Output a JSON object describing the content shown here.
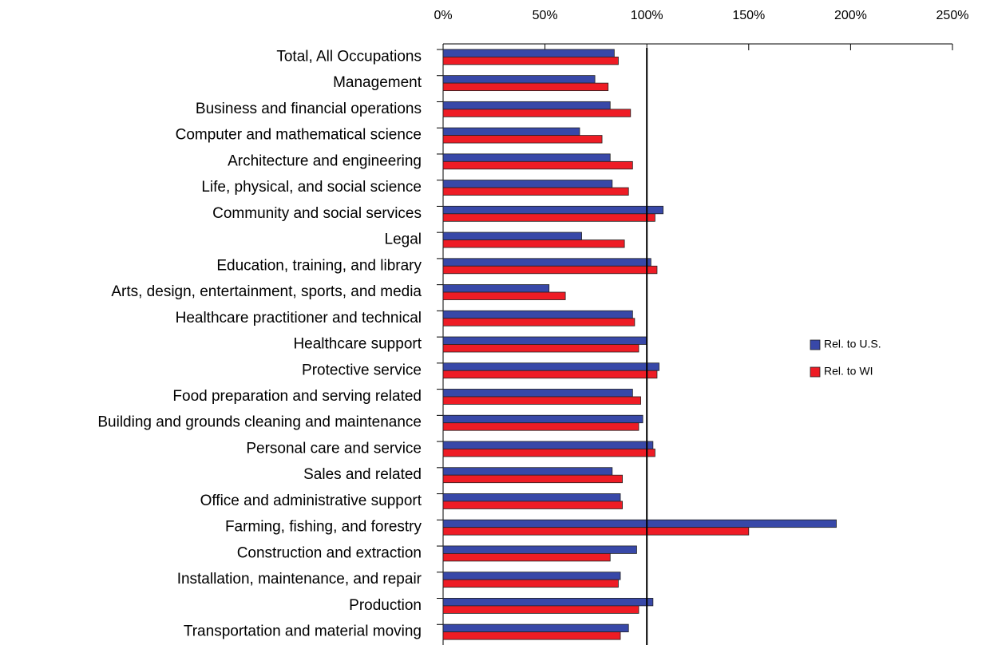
{
  "chart_data": {
    "type": "hbar",
    "categories": [
      "Total, All Occupations",
      "Management",
      "Business and financial operations",
      "Computer and mathematical science",
      "Architecture and engineering",
      "Life, physical, and social science",
      "Community and social services",
      "Legal",
      "Education, training, and library",
      "Arts, design, entertainment, sports, and media",
      "Healthcare practitioner and technical",
      "Healthcare support",
      "Protective service",
      "Food preparation and serving related",
      "Building and grounds cleaning and maintenance",
      "Personal care and service",
      "Sales and related",
      "Office and administrative support",
      "Farming, fishing, and forestry",
      "Construction and extraction",
      "Installation, maintenance, and repair",
      "Production",
      "Transportation and material moving"
    ],
    "series": [
      {
        "name": "Rel. to U.S.",
        "color": "#3848a8",
        "values": [
          84,
          74.5,
          82,
          67,
          82,
          83,
          108,
          68,
          102,
          52,
          93,
          100,
          106,
          93,
          98,
          103,
          83,
          87,
          193,
          95,
          87,
          103,
          91
        ]
      },
      {
        "name": "Rel. to WI",
        "color": "#ee1c25",
        "values": [
          86,
          81,
          92,
          78,
          93,
          91,
          104,
          89,
          105,
          60,
          94,
          96,
          105,
          97,
          96,
          104,
          88,
          88,
          150,
          82,
          86,
          96,
          87
        ]
      }
    ],
    "xlim": [
      0,
      250
    ],
    "xticks": [
      {
        "value": 0,
        "label": "0%"
      },
      {
        "value": 50,
        "label": "50%"
      },
      {
        "value": 100,
        "label": "100%"
      },
      {
        "value": 150,
        "label": "150%"
      },
      {
        "value": 200,
        "label": "200%"
      },
      {
        "value": 250,
        "label": "250%"
      }
    ],
    "reference_line": 100,
    "legend": "right"
  }
}
